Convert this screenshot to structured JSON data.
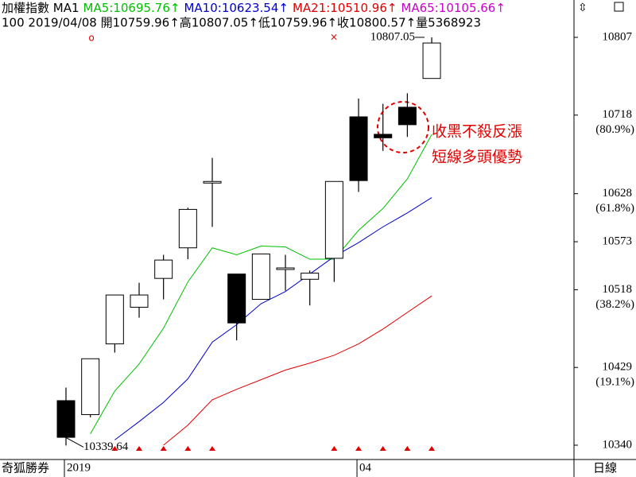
{
  "chart_data": {
    "type": "candlestick",
    "legend_items": [
      {
        "text": "加權指數 MA1",
        "color": "#000000"
      },
      {
        "text": "MA5:10695.76↑",
        "color": "#00c000"
      },
      {
        "text": "MA10:10623.54↑",
        "color": "#0000cc"
      },
      {
        "text": "MA21:10510.96↑",
        "color": "#e00000"
      },
      {
        "text": "MA65:10105.66↑",
        "color": "#cc00cc"
      }
    ],
    "info_line": "100 2019/04/08 開10759.96↑高10807.05↑低10759.96↑收10800.57↑量5368923",
    "categories": [
      "2019",
      null,
      null,
      null,
      null,
      null,
      null,
      null,
      null,
      null,
      null,
      null,
      "04",
      null,
      null,
      null
    ],
    "open": [
      10391,
      10375,
      10456,
      10498,
      10531,
      10566,
      10641,
      10536,
      10507,
      10543,
      10530,
      10554,
      10716,
      10696,
      10727,
      10759.96
    ],
    "high": [
      10406,
      10439,
      10512,
      10526,
      10558,
      10612,
      10669,
      10536,
      10559,
      10558,
      10540,
      10642,
      10737,
      10731,
      10743,
      10807.05
    ],
    "low": [
      10339.64,
      10372,
      10446,
      10486,
      10507,
      10553,
      10590,
      10460,
      10507,
      10517,
      10500,
      10527,
      10630,
      10677,
      10693,
      10759.96
    ],
    "close": [
      10349,
      10439,
      10512,
      10512,
      10552,
      10610,
      10642,
      10480,
      10559,
      10543,
      10537,
      10642,
      10643,
      10692,
      10707,
      10800.57
    ],
    "up_color": "#ffffff",
    "down_color": "#000000",
    "series": [
      {
        "name": "MA5",
        "color": "#00c000",
        "values": [
          null,
          10353,
          10402,
          10433,
          10474,
          10527,
          10566,
          10558,
          10568,
          10567,
          10553,
          10553,
          10586,
          10611,
          10645,
          10695.76
        ]
      },
      {
        "name": "MA10",
        "color": "#0000cc",
        "values": [
          null,
          null,
          10346,
          10367,
          10389,
          10416,
          10458,
          10478,
          10502,
          10516,
          10536,
          10556,
          10572,
          10590,
          10606,
          10623.54
        ]
      },
      {
        "name": "MA21",
        "color": "#e00000",
        "values": [
          null,
          null,
          null,
          null,
          10340,
          10363,
          10392,
          10404,
          10415,
          10426,
          10434,
          10443,
          10456,
          10473,
          10492,
          10510.96
        ]
      }
    ],
    "signals": [
      false,
      false,
      true,
      true,
      true,
      true,
      true,
      false,
      false,
      false,
      false,
      true,
      true,
      true,
      true,
      true
    ],
    "signal_color": "#e00000",
    "ylim": [
      10323.6,
      10849.8
    ],
    "yticks": [
      10340,
      10429,
      10518,
      10573,
      10628,
      10718,
      10807
    ],
    "ytick_notes": [
      {
        "value": 10429,
        "label": "(19.1%)"
      },
      {
        "value": 10518,
        "label": "(38.2%)"
      },
      {
        "value": 10628,
        "label": "(61.8%)"
      },
      {
        "value": 10718,
        "label": "(80.9%)"
      }
    ],
    "annotation": [
      "收黑不殺反漲",
      "短線多頭優勢"
    ],
    "footer_left": "奇狐勝券",
    "footer_right": "日線"
  }
}
